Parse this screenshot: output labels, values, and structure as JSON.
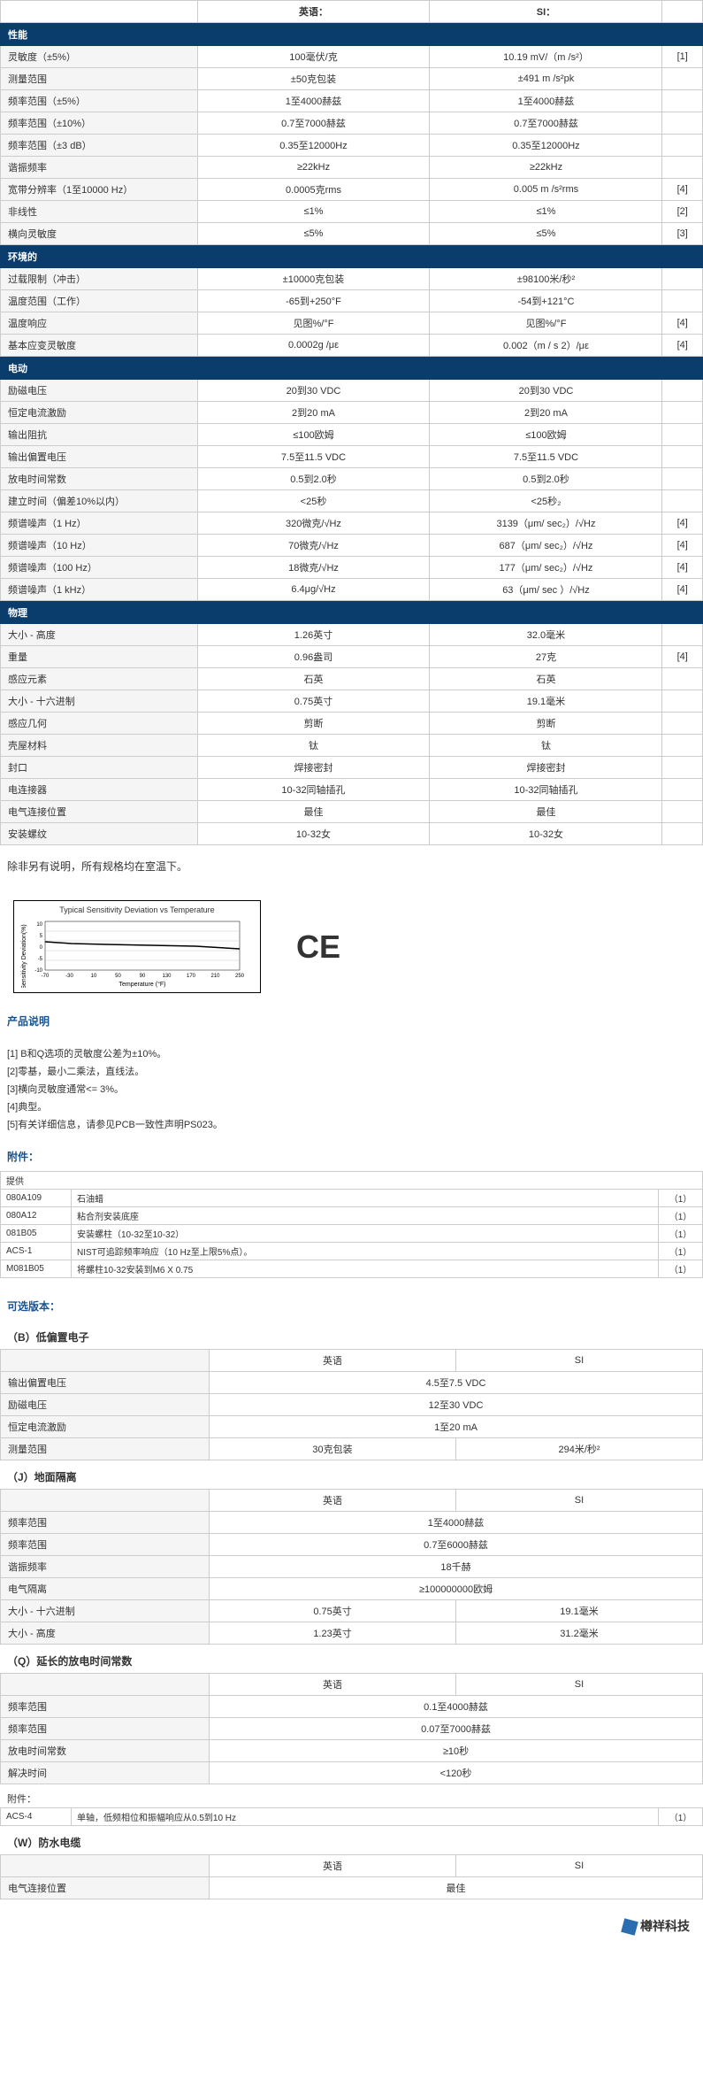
{
  "unit_headers": {
    "english": "英语：",
    "si": "SI："
  },
  "sections": [
    {
      "title": "性能",
      "rows": [
        {
          "param": "灵敏度（±5%）",
          "en": "100毫伏/克",
          "si": "10.19 mV/（m /s²）",
          "ref": "[1]"
        },
        {
          "param": "测量范围",
          "en": "±50克包装",
          "si": "±491 m /s²pk",
          "ref": ""
        },
        {
          "param": "频率范围（±5%）",
          "en": "1至4000赫兹",
          "si": "1至4000赫兹",
          "ref": ""
        },
        {
          "param": "频率范围（±10%）",
          "en": "0.7至7000赫兹",
          "si": "0.7至7000赫兹",
          "ref": ""
        },
        {
          "param": "频率范围（±3 dB）",
          "en": "0.35至12000Hz",
          "si": "0.35至12000Hz",
          "ref": ""
        },
        {
          "param": "谐振频率",
          "en": "≥22kHz",
          "si": "≥22kHz",
          "ref": ""
        },
        {
          "param": "宽带分辨率（1至10000 Hz）",
          "en": "0.0005克rms",
          "si": "0.005 m /s²rms",
          "ref": "[4]"
        },
        {
          "param": "非线性",
          "en": "≤1%",
          "si": "≤1%",
          "ref": "[2]"
        },
        {
          "param": "横向灵敏度",
          "en": "≤5%",
          "si": "≤5%",
          "ref": "[3]"
        }
      ]
    },
    {
      "title": "环境的",
      "rows": [
        {
          "param": "过载限制（冲击）",
          "en": "±10000克包装",
          "si": "±98100米/秒²",
          "ref": ""
        },
        {
          "param": "温度范围（工作）",
          "en": "-65到+250°F",
          "si": "-54到+121°C",
          "ref": ""
        },
        {
          "param": "温度响应",
          "en": "见图%/°F",
          "si": "见图%/°F",
          "ref": "[4]"
        },
        {
          "param": "基本应变灵敏度",
          "en": "0.0002g /με",
          "si": "0.002（m / s 2）/με",
          "ref": "[4]"
        }
      ]
    },
    {
      "title": "电动",
      "rows": [
        {
          "param": "励磁电压",
          "en": "20到30 VDC",
          "si": "20到30 VDC",
          "ref": ""
        },
        {
          "param": "恒定电流激励",
          "en": "2到20 mA",
          "si": "2到20 mA",
          "ref": ""
        },
        {
          "param": "输出阻抗",
          "en": "≤100欧姆",
          "si": "≤100欧姆",
          "ref": ""
        },
        {
          "param": "输出偏置电压",
          "en": "7.5至11.5 VDC",
          "si": "7.5至11.5 VDC",
          "ref": ""
        },
        {
          "param": "放电时间常数",
          "en": "0.5到2.0秒",
          "si": "0.5到2.0秒",
          "ref": ""
        },
        {
          "param": "建立时间（偏差10%以内）",
          "en": "<25秒",
          "si": "<25秒₂",
          "ref": ""
        },
        {
          "param": "频谱噪声（1 Hz）",
          "en": "320微克/√Hz",
          "si": "3139（μm/ sec₂）/√Hz",
          "ref": "[4]"
        },
        {
          "param": "频谱噪声（10 Hz）",
          "en": "70微克/√Hz",
          "si": "687（μm/ sec₂）/√Hz",
          "ref": "[4]"
        },
        {
          "param": "频谱噪声（100 Hz）",
          "en": "18微克/√Hz",
          "si": "177（μm/ sec₂）/√Hz",
          "ref": "[4]"
        },
        {
          "param": "频谱噪声（1 kHz）",
          "en": "6.4μg/√Hz",
          "si": "63（μm/ sec ）/√Hz",
          "ref": "[4]"
        }
      ]
    },
    {
      "title": "物理",
      "rows": [
        {
          "param": "大小 - 高度",
          "en": "1.26英寸",
          "si": "32.0毫米",
          "ref": ""
        },
        {
          "param": "重量",
          "en": "0.96盎司",
          "si": "27克",
          "ref": "[4]"
        },
        {
          "param": "感应元素",
          "en": "石英",
          "si": "石英",
          "ref": ""
        },
        {
          "param": "大小 - 十六进制",
          "en": "0.75英寸",
          "si": "19.1毫米",
          "ref": ""
        },
        {
          "param": "感应几何",
          "en": "剪断",
          "si": "剪断",
          "ref": ""
        },
        {
          "param": "壳屋材料",
          "en": "钛",
          "si": "钛",
          "ref": ""
        },
        {
          "param": "封口",
          "en": "焊接密封",
          "si": "焊接密封",
          "ref": ""
        },
        {
          "param": "电连接器",
          "en": "10-32同轴插孔",
          "si": "10-32同轴插孔",
          "ref": ""
        },
        {
          "param": "电气连接位置",
          "en": "最佳",
          "si": "最佳",
          "ref": ""
        },
        {
          "param": "安装螺纹",
          "en": "10-32女",
          "si": "10-32女",
          "ref": ""
        }
      ]
    }
  ],
  "room_temp_note": "除非另有说明，所有规格均在室温下。",
  "chart": {
    "title": "Typical Sensitivity Deviation vs Temperature",
    "ylabel": "Sensitivity Deviation(%)",
    "xlabel": "Temperature (°F)",
    "yticks": [
      "10",
      "5",
      "0",
      "-5",
      "-10"
    ],
    "xticks": [
      "-70",
      "-30",
      "10",
      "50",
      "90",
      "130",
      "170",
      "210",
      "250"
    ]
  },
  "ce_label": "CE",
  "product_notes": {
    "title": "产品说明",
    "lines": [
      "[1] B和Q选项的灵敏度公差为±10%。",
      "[2]零基，最小二乘法，直线法。",
      "[3]横向灵敏度通常<= 3%。",
      "[4]典型。",
      "[5]有关详细信息，请参见PCB一致性声明PS023。"
    ]
  },
  "accessories": {
    "title": "附件：",
    "supply": "提供",
    "rows": [
      {
        "code": "080A109",
        "desc": "石油蜡",
        "qty": "（1）"
      },
      {
        "code": "080A12",
        "desc": "粘合剂安装底座",
        "qty": "（1）"
      },
      {
        "code": "081B05",
        "desc": "安装螺柱（10-32至10-32）",
        "qty": "（1）"
      },
      {
        "code": "ACS-1",
        "desc": "NIST可追踪频率响应（10 Hz至上限5%点）。",
        "qty": "（1）"
      },
      {
        "code": "M081B05",
        "desc": "将螺柱10-32安装到M6 X 0.75",
        "qty": "（1）"
      }
    ]
  },
  "optional_versions_title": "可选版本：",
  "versions": [
    {
      "key": "（B）低偏置电子",
      "headers": {
        "en": "英语",
        "si": "SI"
      },
      "rows": [
        {
          "param": "输出偏置电压",
          "en": "4.5至7.5 VDC",
          "si": "",
          "span": true
        },
        {
          "param": "励磁电压",
          "en": "12至30 VDC",
          "si": "",
          "span": true
        },
        {
          "param": "恒定电流激励",
          "en": "1至20 mA",
          "si": "",
          "span": true
        },
        {
          "param": "测量范围",
          "en": "30克包装",
          "si": "294米/秒²",
          "span": false
        }
      ]
    },
    {
      "key": "（J）地面隔离",
      "headers": {
        "en": "英语",
        "si": "SI"
      },
      "rows": [
        {
          "param": "频率范围",
          "en": "1至4000赫兹",
          "si": "",
          "span": true
        },
        {
          "param": "频率范围",
          "en": "0.7至6000赫兹",
          "si": "",
          "span": true
        },
        {
          "param": "谐振频率",
          "en": "18千赫",
          "si": "",
          "span": true
        },
        {
          "param": "电气隔离",
          "en": "≥100000000欧姆",
          "si": "",
          "span": true
        },
        {
          "param": "大小 - 十六进制",
          "en": "0.75英寸",
          "si": "19.1毫米",
          "span": false
        },
        {
          "param": "大小 - 高度",
          "en": "1.23英寸",
          "si": "31.2毫米",
          "span": false
        }
      ]
    },
    {
      "key": "（Q）延长的放电时间常数",
      "headers": {
        "en": "英语",
        "si": "SI"
      },
      "rows": [
        {
          "param": "频率范围",
          "en": "0.1至4000赫兹",
          "si": "",
          "span": true
        },
        {
          "param": "频率范围",
          "en": "0.07至7000赫兹",
          "si": "",
          "span": true
        },
        {
          "param": "放电时间常数",
          "en": "≥10秒",
          "si": "",
          "span": true
        },
        {
          "param": "解决时间",
          "en": "<120秒",
          "si": "",
          "span": true
        }
      ]
    }
  ],
  "q_accessories": {
    "title": "附件：",
    "rows": [
      {
        "code": "ACS-4",
        "desc": "单轴，低频相位和振幅响应从0.5到10 Hz",
        "qty": "（1）"
      }
    ]
  },
  "w_version": {
    "key": "（W）防水电缆",
    "headers": {
      "en": "英语",
      "si": "SI"
    },
    "rows": [
      {
        "param": "电气连接位置",
        "en": "最佳",
        "si": "",
        "span": true
      }
    ]
  },
  "footer_brand": "樽祥科技"
}
